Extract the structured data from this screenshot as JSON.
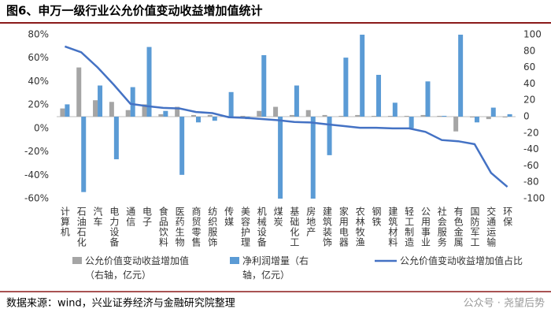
{
  "chart_data": {
    "type": "bar_line",
    "title": "图6、申万一级行业公允价值变动收益增加值统计",
    "source": "数据来源：wind，兴业证券经济与金融研究院整理",
    "watermark": "公众号 · 尧望后势",
    "categories": [
      "计算机",
      "石油石化",
      "汽车",
      "电力设备",
      "通信",
      "电子",
      "食品饮料",
      "医药生物",
      "商贸零售",
      "纺织服饰",
      "传媒",
      "美容护理",
      "机械设备",
      "煤炭",
      "基础化工",
      "房地产",
      "建筑装饰",
      "家用电器",
      "农林牧渔",
      "钢铁",
      "建筑材料",
      "轻工制造",
      "公用事业",
      "社会服务",
      "有色金属",
      "国防军工",
      "交通运输",
      "环保"
    ],
    "series": [
      {
        "name": "公允价值变动收益增加值（右轴，亿元）",
        "type": "bar",
        "axis": "y2",
        "color": "#a5a5a5",
        "values": [
          10,
          60,
          20,
          18,
          8,
          15,
          3,
          12,
          2,
          2,
          1,
          1,
          7,
          12,
          2,
          8,
          2,
          1,
          2,
          1,
          1,
          1,
          2,
          1,
          -18,
          -1,
          -3,
          -1
        ]
      },
      {
        "name": "净利润增量（右轴，亿元）",
        "type": "bar",
        "axis": "y2",
        "color": "#5b9bd5",
        "values": [
          15,
          -92,
          38,
          -52,
          36,
          85,
          7,
          -71,
          -7,
          -5,
          30,
          -3,
          75,
          -100,
          38,
          -100,
          -47,
          72,
          100,
          51,
          17,
          -14,
          43,
          1,
          100,
          -7,
          11,
          3
        ]
      },
      {
        "name": "公允价值变动收益增加值占比",
        "type": "line",
        "axis": "y",
        "color": "#4472c4",
        "values": [
          70,
          65,
          52,
          37,
          21,
          19,
          17.5,
          17,
          14,
          13,
          9.5,
          9,
          8,
          7,
          5.5,
          5,
          3.5,
          2,
          0.5,
          0.5,
          0,
          0,
          -3,
          -10,
          -11,
          -13.5,
          -38,
          -50
        ]
      }
    ],
    "ylim": [
      -60,
      80
    ],
    "yticks": [
      {
        "value": -60,
        "label": "-60%"
      },
      {
        "value": -40,
        "label": "-40%"
      },
      {
        "value": -20,
        "label": "-20%"
      },
      {
        "value": 0,
        "label": "0%"
      },
      {
        "value": 20,
        "label": "20%"
      },
      {
        "value": 40,
        "label": "40%"
      },
      {
        "value": 60,
        "label": "60%"
      },
      {
        "value": 80,
        "label": "80%"
      }
    ],
    "y2lim": [
      -100,
      100
    ],
    "y2ticks": [
      -100,
      -80,
      -60,
      -40,
      -20,
      0,
      20,
      40,
      60,
      80,
      100
    ]
  }
}
